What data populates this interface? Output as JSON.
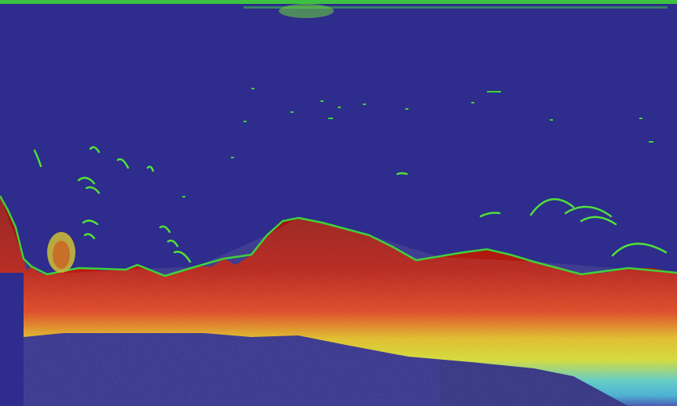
{
  "colors": {
    "background": "#2e2c8c",
    "surface_line": "#3fd23a",
    "seabed_core": "#8f1412",
    "seabed_red": "#c71d10",
    "mid_yellow": "#e6e020",
    "mid_cyan": "#3cc8d8",
    "fringe_green": "#3fd23a",
    "lower_block": "#2a2a80"
  },
  "echogram": {
    "type": "echosounder-echogram",
    "surface_band": true,
    "seabed_profile": true,
    "fish_marks": true
  }
}
